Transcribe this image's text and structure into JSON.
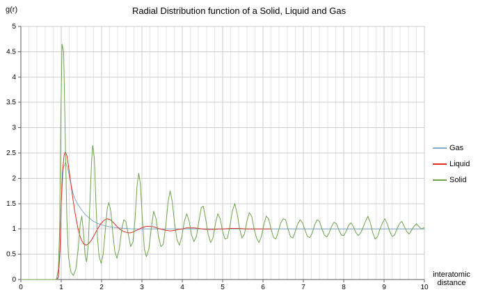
{
  "title": "Radial Distribution function of a Solid, Liquid and Gas",
  "y_axis_title": "g(r)",
  "x_axis_title_line1": "interatomic",
  "x_axis_title_line2": "distance",
  "colors": {
    "grid_minor": "#E6E6E6",
    "grid_major": "#CDCDCD",
    "plot_border": "#B5B5B5",
    "axis": "#5A5A5A",
    "tick_text": "#000000"
  },
  "chart_data": {
    "type": "line",
    "title": "Radial Distribution function of a Solid, Liquid and Gas",
    "xlabel": "interatomic distance",
    "ylabel": "g(r)",
    "xlim": [
      0,
      10
    ],
    "ylim": [
      0,
      5
    ],
    "grid": true,
    "legend_position": "right",
    "x_ticks": [
      0,
      1,
      2,
      3,
      4,
      5,
      6,
      7,
      8,
      9,
      10
    ],
    "y_ticks": [
      0,
      0.5,
      1,
      1.5,
      2,
      2.5,
      3,
      3.5,
      4,
      4.5,
      5
    ],
    "x_minor_step": 0.2,
    "series": [
      {
        "name": "Gas",
        "color": "#7EA8CE",
        "points": [
          [
            0,
            0
          ],
          [
            0.85,
            0
          ],
          [
            0.92,
            0.02
          ],
          [
            0.97,
            0.5
          ],
          [
            1,
            1.5
          ],
          [
            1.05,
            2.2
          ],
          [
            1.1,
            2.3
          ],
          [
            1.15,
            2.24
          ],
          [
            1.2,
            2.05
          ],
          [
            1.25,
            1.85
          ],
          [
            1.3,
            1.68
          ],
          [
            1.35,
            1.58
          ],
          [
            1.4,
            1.5
          ],
          [
            1.5,
            1.38
          ],
          [
            1.6,
            1.28
          ],
          [
            1.7,
            1.21
          ],
          [
            1.8,
            1.15
          ],
          [
            1.9,
            1.11
          ],
          [
            2,
            1.08
          ],
          [
            2.1,
            1.06
          ],
          [
            2.2,
            1.04
          ],
          [
            2.4,
            1.02
          ],
          [
            2.6,
            1.01
          ],
          [
            2.8,
            1
          ],
          [
            3,
            1
          ],
          [
            4,
            1
          ],
          [
            5,
            1
          ],
          [
            6,
            1
          ],
          [
            7,
            1
          ],
          [
            8,
            1
          ],
          [
            9,
            1
          ],
          [
            10,
            1
          ]
        ]
      },
      {
        "name": "Liquid",
        "color": "#E02B20",
        "points": [
          [
            0,
            0
          ],
          [
            0.88,
            0
          ],
          [
            0.93,
            0.05
          ],
          [
            0.97,
            0.6
          ],
          [
            1,
            1.5
          ],
          [
            1.03,
            2.1
          ],
          [
            1.07,
            2.45
          ],
          [
            1.1,
            2.52
          ],
          [
            1.14,
            2.45
          ],
          [
            1.18,
            2.25
          ],
          [
            1.22,
            2
          ],
          [
            1.27,
            1.7
          ],
          [
            1.32,
            1.42
          ],
          [
            1.38,
            1.15
          ],
          [
            1.44,
            0.92
          ],
          [
            1.5,
            0.78
          ],
          [
            1.56,
            0.7
          ],
          [
            1.62,
            0.68
          ],
          [
            1.68,
            0.71
          ],
          [
            1.75,
            0.78
          ],
          [
            1.82,
            0.88
          ],
          [
            1.9,
            1
          ],
          [
            1.98,
            1.1
          ],
          [
            2.06,
            1.17
          ],
          [
            2.14,
            1.2
          ],
          [
            2.22,
            1.18
          ],
          [
            2.3,
            1.12
          ],
          [
            2.38,
            1.05
          ],
          [
            2.46,
            0.99
          ],
          [
            2.54,
            0.95
          ],
          [
            2.62,
            0.93
          ],
          [
            2.7,
            0.92
          ],
          [
            2.78,
            0.94
          ],
          [
            2.86,
            0.97
          ],
          [
            2.94,
            1
          ],
          [
            3.02,
            1.03
          ],
          [
            3.1,
            1.05
          ],
          [
            3.2,
            1.05
          ],
          [
            3.3,
            1.04
          ],
          [
            3.4,
            1.01
          ],
          [
            3.5,
            0.99
          ],
          [
            3.6,
            0.97
          ],
          [
            3.7,
            0.96
          ],
          [
            3.8,
            0.97
          ],
          [
            3.9,
            0.99
          ],
          [
            4,
            1
          ],
          [
            4.1,
            1.02
          ],
          [
            4.2,
            1.02
          ],
          [
            4.3,
            1.02
          ],
          [
            4.4,
            1.01
          ],
          [
            4.5,
            1
          ],
          [
            4.6,
            0.99
          ],
          [
            4.7,
            0.99
          ],
          [
            4.8,
            0.99
          ],
          [
            4.9,
            1
          ],
          [
            5,
            1
          ],
          [
            5.2,
            1.01
          ],
          [
            5.4,
            1.01
          ],
          [
            5.6,
            1
          ],
          [
            5.8,
            1
          ],
          [
            6,
            1
          ],
          [
            6.2,
            1
          ]
        ]
      },
      {
        "name": "Solid",
        "color": "#6DA34D",
        "points": [
          [
            0,
            0
          ],
          [
            0.88,
            0
          ],
          [
            0.93,
            0.2
          ],
          [
            0.96,
            1
          ],
          [
            0.99,
            3.2
          ],
          [
            1.02,
            4.65
          ],
          [
            1.06,
            4.5
          ],
          [
            1.1,
            2.8
          ],
          [
            1.14,
            1.2
          ],
          [
            1.18,
            0.45
          ],
          [
            1.24,
            0.15
          ],
          [
            1.3,
            0.08
          ],
          [
            1.36,
            0.2
          ],
          [
            1.42,
            0.6
          ],
          [
            1.47,
            1.1
          ],
          [
            1.51,
            1.25
          ],
          [
            1.55,
            0.95
          ],
          [
            1.59,
            0.5
          ],
          [
            1.63,
            0.35
          ],
          [
            1.67,
            0.7
          ],
          [
            1.71,
            1.5
          ],
          [
            1.75,
            2.3
          ],
          [
            1.78,
            2.65
          ],
          [
            1.82,
            2.4
          ],
          [
            1.86,
            1.5
          ],
          [
            1.9,
            0.8
          ],
          [
            1.94,
            0.45
          ],
          [
            1.99,
            0.32
          ],
          [
            2.04,
            0.5
          ],
          [
            2.09,
            0.95
          ],
          [
            2.14,
            1.4
          ],
          [
            2.18,
            1.52
          ],
          [
            2.23,
            1.35
          ],
          [
            2.28,
            0.9
          ],
          [
            2.33,
            0.55
          ],
          [
            2.38,
            0.42
          ],
          [
            2.44,
            0.6
          ],
          [
            2.5,
            1
          ],
          [
            2.55,
            1.18
          ],
          [
            2.6,
            1.15
          ],
          [
            2.66,
            0.9
          ],
          [
            2.72,
            0.65
          ],
          [
            2.78,
            0.75
          ],
          [
            2.83,
            1.2
          ],
          [
            2.88,
            1.85
          ],
          [
            2.92,
            2.1
          ],
          [
            2.96,
            1.9
          ],
          [
            3.01,
            1.2
          ],
          [
            3.06,
            0.6
          ],
          [
            3.11,
            0.45
          ],
          [
            3.17,
            0.6
          ],
          [
            3.23,
            1
          ],
          [
            3.29,
            1.35
          ],
          [
            3.35,
            1.2
          ],
          [
            3.41,
            0.85
          ],
          [
            3.47,
            0.65
          ],
          [
            3.53,
            0.7
          ],
          [
            3.59,
            1.05
          ],
          [
            3.65,
            1.55
          ],
          [
            3.7,
            1.75
          ],
          [
            3.75,
            1.55
          ],
          [
            3.81,
            1.1
          ],
          [
            3.87,
            0.78
          ],
          [
            3.93,
            0.68
          ],
          [
            3.99,
            0.85
          ],
          [
            4.05,
            1.15
          ],
          [
            4.11,
            1.3
          ],
          [
            4.17,
            1.15
          ],
          [
            4.23,
            0.88
          ],
          [
            4.29,
            0.75
          ],
          [
            4.35,
            0.85
          ],
          [
            4.41,
            1.15
          ],
          [
            4.47,
            1.42
          ],
          [
            4.52,
            1.45
          ],
          [
            4.58,
            1.2
          ],
          [
            4.64,
            0.9
          ],
          [
            4.7,
            0.73
          ],
          [
            4.76,
            0.82
          ],
          [
            4.82,
            1.1
          ],
          [
            4.88,
            1.3
          ],
          [
            4.94,
            1.2
          ],
          [
            5,
            0.95
          ],
          [
            5.06,
            0.8
          ],
          [
            5.12,
            0.82
          ],
          [
            5.18,
            1.05
          ],
          [
            5.24,
            1.35
          ],
          [
            5.3,
            1.5
          ],
          [
            5.36,
            1.3
          ],
          [
            5.42,
            1
          ],
          [
            5.48,
            0.82
          ],
          [
            5.54,
            0.9
          ],
          [
            5.6,
            1.15
          ],
          [
            5.66,
            1.32
          ],
          [
            5.72,
            1.25
          ],
          [
            5.78,
            1
          ],
          [
            5.84,
            0.82
          ],
          [
            5.9,
            0.73
          ],
          [
            5.96,
            0.85
          ],
          [
            6.02,
            1.08
          ],
          [
            6.08,
            1.25
          ],
          [
            6.14,
            1.2
          ],
          [
            6.2,
            1
          ],
          [
            6.26,
            0.83
          ],
          [
            6.32,
            0.8
          ],
          [
            6.38,
            0.95
          ],
          [
            6.44,
            1.12
          ],
          [
            6.5,
            1.2
          ],
          [
            6.56,
            1.18
          ],
          [
            6.62,
            1
          ],
          [
            6.68,
            0.85
          ],
          [
            6.74,
            0.82
          ],
          [
            6.8,
            0.95
          ],
          [
            6.86,
            1.1
          ],
          [
            6.92,
            1.18
          ],
          [
            6.98,
            1.12
          ],
          [
            7.04,
            0.98
          ],
          [
            7.1,
            0.85
          ],
          [
            7.16,
            0.83
          ],
          [
            7.22,
            0.92
          ],
          [
            7.28,
            1.08
          ],
          [
            7.34,
            1.18
          ],
          [
            7.4,
            1.15
          ],
          [
            7.46,
            1
          ],
          [
            7.52,
            0.88
          ],
          [
            7.58,
            0.84
          ],
          [
            7.64,
            0.92
          ],
          [
            7.7,
            1.05
          ],
          [
            7.76,
            1.13
          ],
          [
            7.82,
            1.1
          ],
          [
            7.88,
            0.98
          ],
          [
            7.94,
            0.88
          ],
          [
            8,
            0.87
          ],
          [
            8.06,
            0.95
          ],
          [
            8.12,
            1.07
          ],
          [
            8.18,
            1.12
          ],
          [
            8.24,
            1.05
          ],
          [
            8.3,
            0.93
          ],
          [
            8.36,
            0.87
          ],
          [
            8.42,
            0.92
          ],
          [
            8.48,
            1.03
          ],
          [
            8.54,
            1.15
          ],
          [
            8.6,
            1.25
          ],
          [
            8.66,
            1.12
          ],
          [
            8.72,
            0.92
          ],
          [
            8.78,
            0.8
          ],
          [
            8.84,
            0.85
          ],
          [
            8.9,
            1
          ],
          [
            8.96,
            1.12
          ],
          [
            9.02,
            1.2
          ],
          [
            9.08,
            1.1
          ],
          [
            9.14,
            0.95
          ],
          [
            9.2,
            0.85
          ],
          [
            9.26,
            0.88
          ],
          [
            9.32,
            1
          ],
          [
            9.38,
            1.1
          ],
          [
            9.44,
            1.15
          ],
          [
            9.5,
            1.05
          ],
          [
            9.56,
            0.95
          ],
          [
            9.62,
            0.9
          ],
          [
            9.68,
            0.97
          ],
          [
            9.74,
            1.05
          ],
          [
            9.8,
            1.1
          ],
          [
            9.86,
            1.05
          ],
          [
            9.92,
            1
          ],
          [
            9.98,
            1.02
          ],
          [
            10,
            1.02
          ]
        ]
      }
    ]
  }
}
